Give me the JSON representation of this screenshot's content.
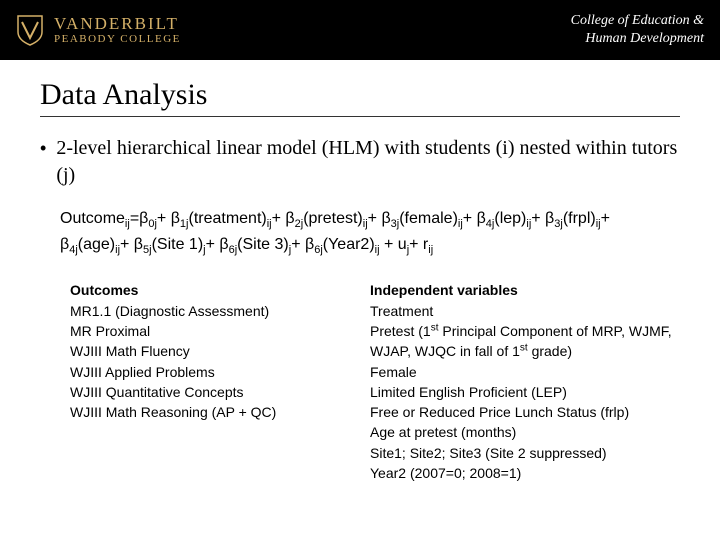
{
  "header": {
    "vanderbilt": "VANDERBILT",
    "peabody": "PEABODY COLLEGE",
    "college_line1": "College of Education &",
    "college_line2": "Human Development"
  },
  "title": "Data Analysis",
  "bullet": "2-level hierarchical linear model (HLM) with students (i) nested within tutors (j)",
  "equation": {
    "prefix": "Outcome",
    "terms": [
      {
        "coef": "0j",
        "var": ""
      },
      {
        "coef": "1j",
        "var": "(treatment)",
        "sub": "ij"
      },
      {
        "coef": "2j",
        "var": "(pretest)",
        "sub": "ij"
      },
      {
        "coef": "3j",
        "var": "(female)",
        "sub": "ij"
      },
      {
        "coef": "4j",
        "var": "(lep)",
        "sub": "ij"
      },
      {
        "coef": "3j",
        "var": "(frpl)",
        "sub": "ij"
      },
      {
        "coef": "4j",
        "var": "(age)",
        "sub": "ij"
      },
      {
        "coef": "5j",
        "var": "(Site 1)",
        "sub": "j"
      },
      {
        "coef": "6j",
        "var": "(Site 3)",
        "sub": "j"
      },
      {
        "coef": "6j",
        "var": "(Year2)",
        "sub": "ij"
      }
    ],
    "tail": " + u",
    "tail_sub": "j",
    "tail2": "+ r",
    "tail2_sub": "ij"
  },
  "outcomes": {
    "heading": "Outcomes",
    "items": [
      "MR1.1 (Diagnostic Assessment)",
      "MR Proximal",
      "WJIII Math Fluency",
      "WJIII Applied Problems",
      "WJIII Quantitative Concepts",
      "WJIII Math Reasoning (AP + QC)"
    ]
  },
  "iv": {
    "heading": "Independent variables",
    "items": [
      {
        "text": "Treatment"
      },
      {
        "text": "Pretest (1",
        "sup": "st",
        "rest": " Principal Component of MRP, WJMF, WJAP, WJQC in fall of 1",
        "sup2": "st",
        "rest2": " grade)"
      },
      {
        "text": "Female"
      },
      {
        "text": "Limited English Proficient (LEP)"
      },
      {
        "text": "Free or Reduced Price Lunch Status (frlp)"
      },
      {
        "text": "Age at pretest (months)"
      },
      {
        "text": "Site1; Site2; Site3 (Site 2 suppressed)"
      },
      {
        "text": "Year2 (2007=0; 2008=1)"
      }
    ]
  }
}
